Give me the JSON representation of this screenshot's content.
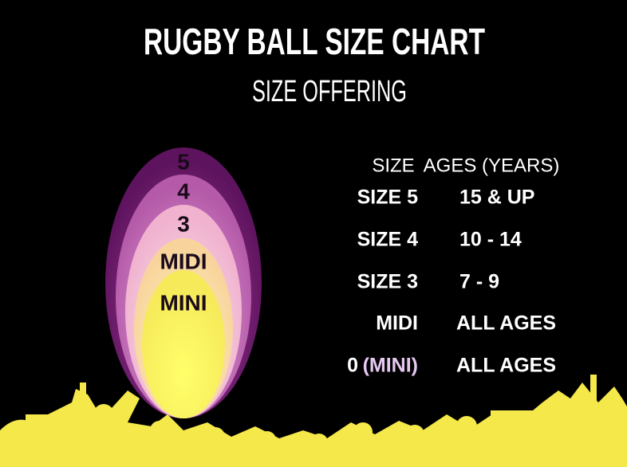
{
  "header": {
    "title": "RUGBY BALL SIZE CHART",
    "subtitle": "SIZE OFFERING"
  },
  "ball": {
    "labels": [
      "5",
      "4",
      "3",
      "MIDI",
      "MINI"
    ]
  },
  "table": {
    "columns": [
      "SIZE",
      "AGES (YEARS)"
    ],
    "rows": [
      [
        "SIZE 5",
        "15 & UP"
      ],
      [
        "SIZE 4",
        "10 - 14"
      ],
      [
        "SIZE 3",
        "7 - 9"
      ],
      [
        "MIDI",
        "ALL AGES"
      ],
      [
        "0",
        "ALL AGES"
      ]
    ],
    "row_note": "(MINI)"
  }
}
